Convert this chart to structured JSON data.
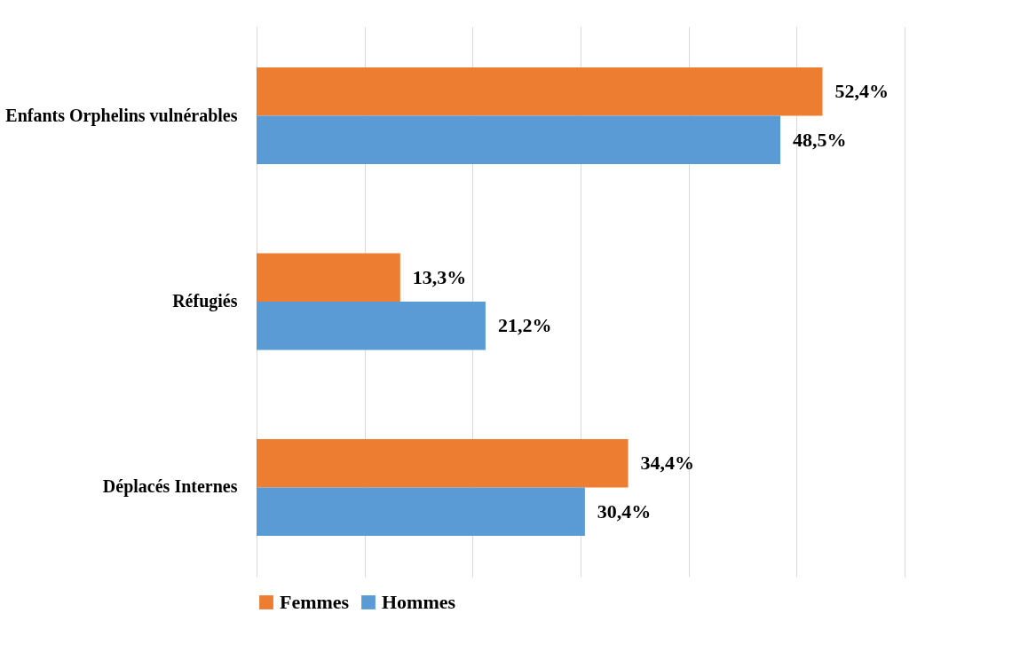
{
  "chart_data": {
    "type": "bar",
    "orientation": "horizontal",
    "categories": [
      "Enfants Orphelins vulnérables",
      "Réfugiés",
      "Déplacés Internes"
    ],
    "series": [
      {
        "name": "Femmes",
        "color": "#ed7d31",
        "values": [
          52.4,
          13.3,
          34.4
        ],
        "value_labels": [
          "52,4%",
          "13,3%",
          "34,4%"
        ]
      },
      {
        "name": "Hommes",
        "color": "#5b9bd5",
        "values": [
          48.5,
          21.2,
          30.4
        ],
        "value_labels": [
          "48,5%",
          "21,2%",
          "30,4%"
        ]
      }
    ],
    "xlim": [
      0,
      60
    ],
    "xticks": [
      {
        "value": 0,
        "label": null
      },
      {
        "value": 10,
        "label": null
      },
      {
        "value": 20,
        "label": null
      },
      {
        "value": 30,
        "label": null
      },
      {
        "value": 40,
        "label": null
      },
      {
        "value": 50,
        "label": null
      },
      {
        "value": 60,
        "label": null
      }
    ],
    "tick_labels": "y",
    "grid": "x",
    "legend": "bottom"
  }
}
